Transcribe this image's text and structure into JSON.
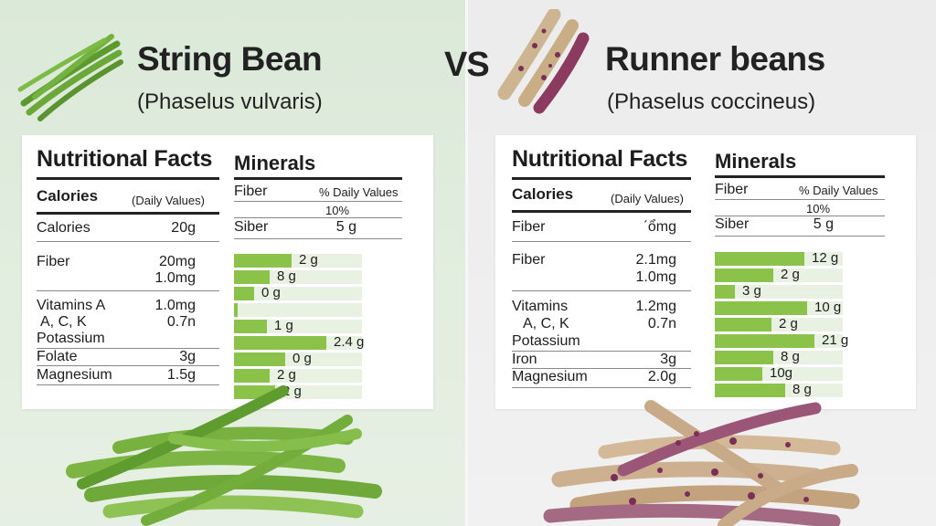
{
  "vs_label": "VS",
  "left": {
    "title": "String Bean",
    "subtitle": "(Phaselus vulvaris)",
    "icon": "green-bean-bunch-icon",
    "nutrition": {
      "heading": "Nutritional Facts",
      "calories_label": "Calories",
      "daily_values_label": "(Daily Values)",
      "rows": [
        {
          "label": "Calories",
          "value": "20g"
        },
        {
          "label": "Fiber",
          "value": "20mg"
        },
        {
          "label": "",
          "value": "1.0mg"
        },
        {
          "label": "Vitamins A",
          "value": "1.0mg"
        },
        {
          "label": "A, C, K",
          "value": "0.7n"
        },
        {
          "label": "Potassium",
          "value": ""
        },
        {
          "label": "Folate",
          "value": "3g"
        },
        {
          "label": "Magnesium",
          "value": "1.5g"
        }
      ]
    },
    "minerals": {
      "heading": "Minerals",
      "fiber_label": "Fiber",
      "pct_label": "% Daily Values",
      "pct_value": "10%",
      "siber_label": "Siber",
      "siber_value": "5 g",
      "bars": [
        {
          "label": "2 g",
          "fill": 0.45
        },
        {
          "label": "8 g",
          "fill": 0.28
        },
        {
          "label": "0 g",
          "fill": 0.16
        },
        {
          "label": "",
          "fill": 0.02
        },
        {
          "label": "1 g",
          "fill": 0.26
        },
        {
          "label": "2.4 g",
          "fill": 0.72
        },
        {
          "label": "0 g",
          "fill": 0.4
        },
        {
          "label": "2 g",
          "fill": 0.28
        },
        {
          "label": "2 g",
          "fill": 0.32
        }
      ]
    },
    "bar_color": "#8bc34a"
  },
  "right": {
    "title": "Runner beans",
    "subtitle": "(Phaselus coccineus)",
    "icon": "runner-bean-pods-icon",
    "nutrition": {
      "heading": "Nutritional Facts",
      "calories_label": "Calories",
      "daily_values_label": "(Daily Values)",
      "rows": [
        {
          "label": "Fiber",
          "value": "ˊổmg"
        },
        {
          "label": "Fiber",
          "value": "2.1mg"
        },
        {
          "label": "",
          "value": "1.0mg"
        },
        {
          "label": "Vitamins",
          "value": "1.2mg"
        },
        {
          "label": "A, C, K",
          "value": "0.7n"
        },
        {
          "label": "Potassium",
          "value": ""
        },
        {
          "label": "Iron",
          "value": "3g"
        },
        {
          "label": "Magnesium",
          "value": "2.0g"
        }
      ]
    },
    "minerals": {
      "heading": "Minerals",
      "fiber_label": "Fiber",
      "pct_label": "% Daily Values",
      "pct_value": "10%",
      "siber_label": "Siber",
      "siber_value": "5 g",
      "bars": [
        {
          "label": "12 g",
          "fill": 0.7
        },
        {
          "label": "2 g",
          "fill": 0.46
        },
        {
          "label": "3 g",
          "fill": 0.16
        },
        {
          "label": "10 g",
          "fill": 0.72
        },
        {
          "label": "2 g",
          "fill": 0.44
        },
        {
          "label": "21 g",
          "fill": 0.78
        },
        {
          "label": "8 g",
          "fill": 0.46
        },
        {
          "label": "10g",
          "fill": 0.37
        },
        {
          "label": "8 g",
          "fill": 0.55
        }
      ]
    },
    "bar_color": "#8bc34a"
  }
}
